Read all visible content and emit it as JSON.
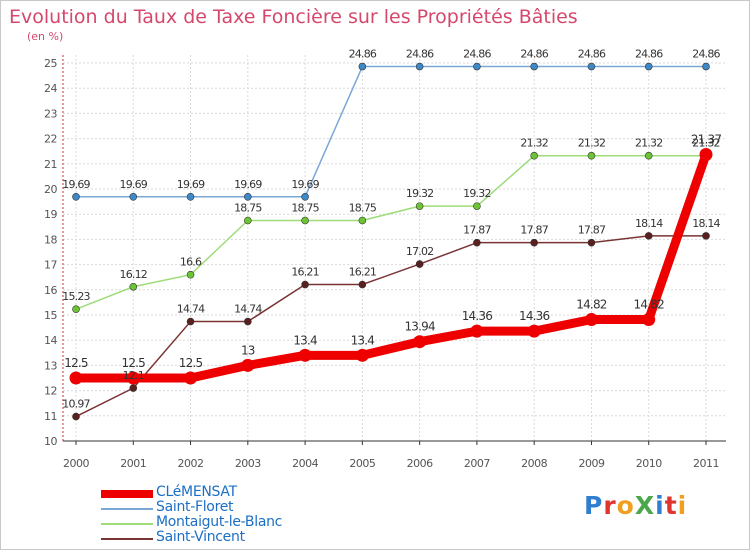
{
  "title": "Evolution du Taux de Taxe Foncière sur les Propriétés Bâties",
  "unit": "(en %)",
  "brand": "ProXiti",
  "colors": {
    "title": "#d5486c",
    "axis_text": "#555555",
    "grid": "#d9d9d9",
    "legend_text": "#1c6fc4"
  },
  "chart_data": {
    "type": "line",
    "title": "Evolution du Taux de Taxe Foncière sur les Propriétés Bâties",
    "ylabel": "(en %)",
    "xlabel": "",
    "x": [
      "2000",
      "2001",
      "2002",
      "2003",
      "2004",
      "2005",
      "2006",
      "2007",
      "2008",
      "2009",
      "2010",
      "2011"
    ],
    "ylim": [
      10,
      25
    ],
    "yticks": [
      10,
      11,
      12,
      13,
      14,
      15,
      16,
      17,
      18,
      19,
      20,
      21,
      22,
      23,
      24,
      25
    ],
    "grid": true,
    "legend_position": "bottom-left",
    "series": [
      {
        "name": "Saint-Floret",
        "color": "#7aa7d6",
        "marker_color": "#3d88c7",
        "values": [
          19.69,
          19.69,
          19.69,
          19.69,
          19.69,
          24.86,
          24.86,
          24.86,
          24.86,
          24.86,
          24.86,
          24.86
        ],
        "labels": [
          "19.69",
          "19.69",
          "19.69",
          "19.69",
          "19.69",
          "24.86",
          "24.86",
          "24.86",
          "24.86",
          "24.86",
          "24.86",
          "24.86"
        ]
      },
      {
        "name": "Montaigut-le-Blanc",
        "color": "#9ddc78",
        "marker_color": "#6cc434",
        "values": [
          15.23,
          16.12,
          16.6,
          18.75,
          18.75,
          18.75,
          19.32,
          19.32,
          21.32,
          21.32,
          21.32,
          21.32
        ],
        "labels": [
          "15.23",
          "16.12",
          "16.6",
          "18.75",
          "18.75",
          "18.75",
          "19.32",
          "19.32",
          "21.32",
          "21.32",
          "21.32",
          "21.32"
        ]
      },
      {
        "name": "Saint-Vincent",
        "color": "#7a3434",
        "marker_color": "#5a1f1f",
        "values": [
          10.97,
          12.1,
          14.74,
          14.74,
          16.21,
          16.21,
          17.02,
          17.87,
          17.87,
          17.87,
          18.14,
          18.14
        ],
        "labels": [
          "10.97",
          "12.1",
          "14.74",
          "14.74",
          "16.21",
          "16.21",
          "17.02",
          "17.87",
          "17.87",
          "17.87",
          "18.14",
          "18.14"
        ]
      },
      {
        "name": "CLéMENSAT",
        "color": "#ee0000",
        "marker_color": "#ee0000",
        "values": [
          12.5,
          12.5,
          12.5,
          13,
          13.4,
          13.4,
          13.94,
          14.36,
          14.36,
          14.82,
          14.82,
          21.37
        ],
        "labels": [
          "12.5",
          "12.5",
          "12.5",
          "13",
          "13.4",
          "13.4",
          "13.94",
          "14.36",
          "14.36",
          "14.82",
          "14.82",
          "21.37"
        ]
      }
    ],
    "legend": [
      "CLéMENSAT",
      "Saint-Floret",
      "Montaigut-le-Blanc",
      "Saint-Vincent"
    ]
  }
}
